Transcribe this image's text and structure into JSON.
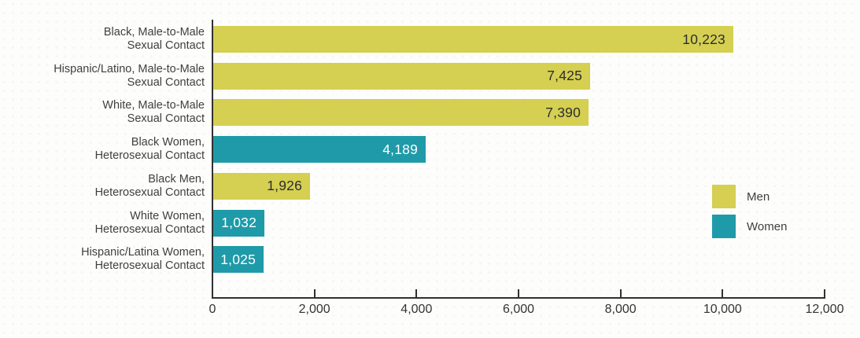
{
  "chart_data": {
    "type": "bar",
    "orientation": "horizontal",
    "title": "",
    "xlabel": "",
    "ylabel": "",
    "grid": false,
    "legend_position": "right",
    "xlim": [
      0,
      12000
    ],
    "x_ticks": [
      0,
      2000,
      4000,
      6000,
      8000,
      10000,
      12000
    ],
    "x_tick_labels": [
      "0",
      "2,000",
      "4,000",
      "6,000",
      "8,000",
      "10,000",
      "12,000"
    ],
    "categories": [
      "Black, Male-to-Male\nSexual Contact",
      "Hispanic/Latino, Male-to-Male\nSexual Contact",
      "White, Male-to-Male\nSexual Contact",
      "Black Women,\nHeterosexual Contact",
      "Black Men,\nHeterosexual Contact",
      "White Women,\nHeterosexual Contact",
      "Hispanic/Latina Women,\nHeterosexual Contact"
    ],
    "values": [
      10223,
      7425,
      7390,
      4189,
      1926,
      1032,
      1025
    ],
    "value_labels": [
      "10,223",
      "7,425",
      "7,390",
      "4,189",
      "1,926",
      "1,032",
      "1,025"
    ],
    "groups": [
      "men",
      "men",
      "men",
      "women",
      "men",
      "women",
      "women"
    ],
    "series_colors": {
      "men": "#d5cf52",
      "women": "#1f9aa8"
    },
    "value_text_colors": {
      "men": "#2d2d2d",
      "women": "#ffffff"
    },
    "axis_color": "#313131",
    "legend": [
      {
        "name": "Men",
        "group": "men",
        "color": "#d5cf52"
      },
      {
        "name": "Women",
        "group": "women",
        "color": "#1f9aa8"
      }
    ]
  }
}
